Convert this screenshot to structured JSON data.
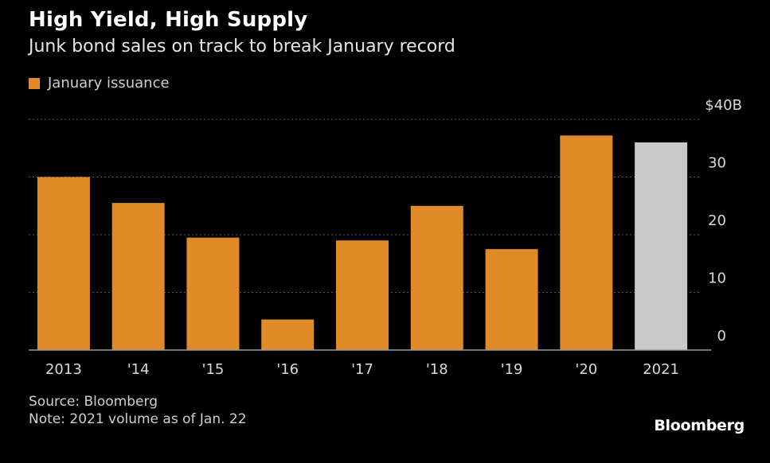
{
  "header": {
    "title": "High Yield, High Supply",
    "subtitle": "Junk bond sales on track to break January record"
  },
  "colors": {
    "bar": "#e08b27",
    "bar_highlight": "#c9c9c9",
    "grid": "#5a5a5a",
    "tick": "#d9d9d9"
  },
  "chart_data": {
    "type": "bar",
    "categories": [
      "2013",
      "'14",
      "'15",
      "'16",
      "'17",
      "'18",
      "'19",
      "'20",
      "2021"
    ],
    "series": [
      {
        "name": "January issuance",
        "values": [
          30,
          25.5,
          19.5,
          5.3,
          19,
          25,
          17.5,
          37.2,
          36
        ]
      }
    ],
    "highlight_index": 8,
    "ylim": [
      0,
      40
    ],
    "yticks": [
      {
        "value": 0,
        "label": "0"
      },
      {
        "value": 10,
        "label": "10"
      },
      {
        "value": 20,
        "label": "20"
      },
      {
        "value": 30,
        "label": "30"
      },
      {
        "value": 40,
        "label": "$40B"
      }
    ],
    "y_axis_position": "right",
    "grid": true,
    "legend_position": "top-left"
  },
  "legend": {
    "label": "January issuance"
  },
  "footer": {
    "source": "Source: Bloomberg",
    "note": "Note: 2021 volume as of Jan. 22"
  },
  "brand": "Bloomberg"
}
